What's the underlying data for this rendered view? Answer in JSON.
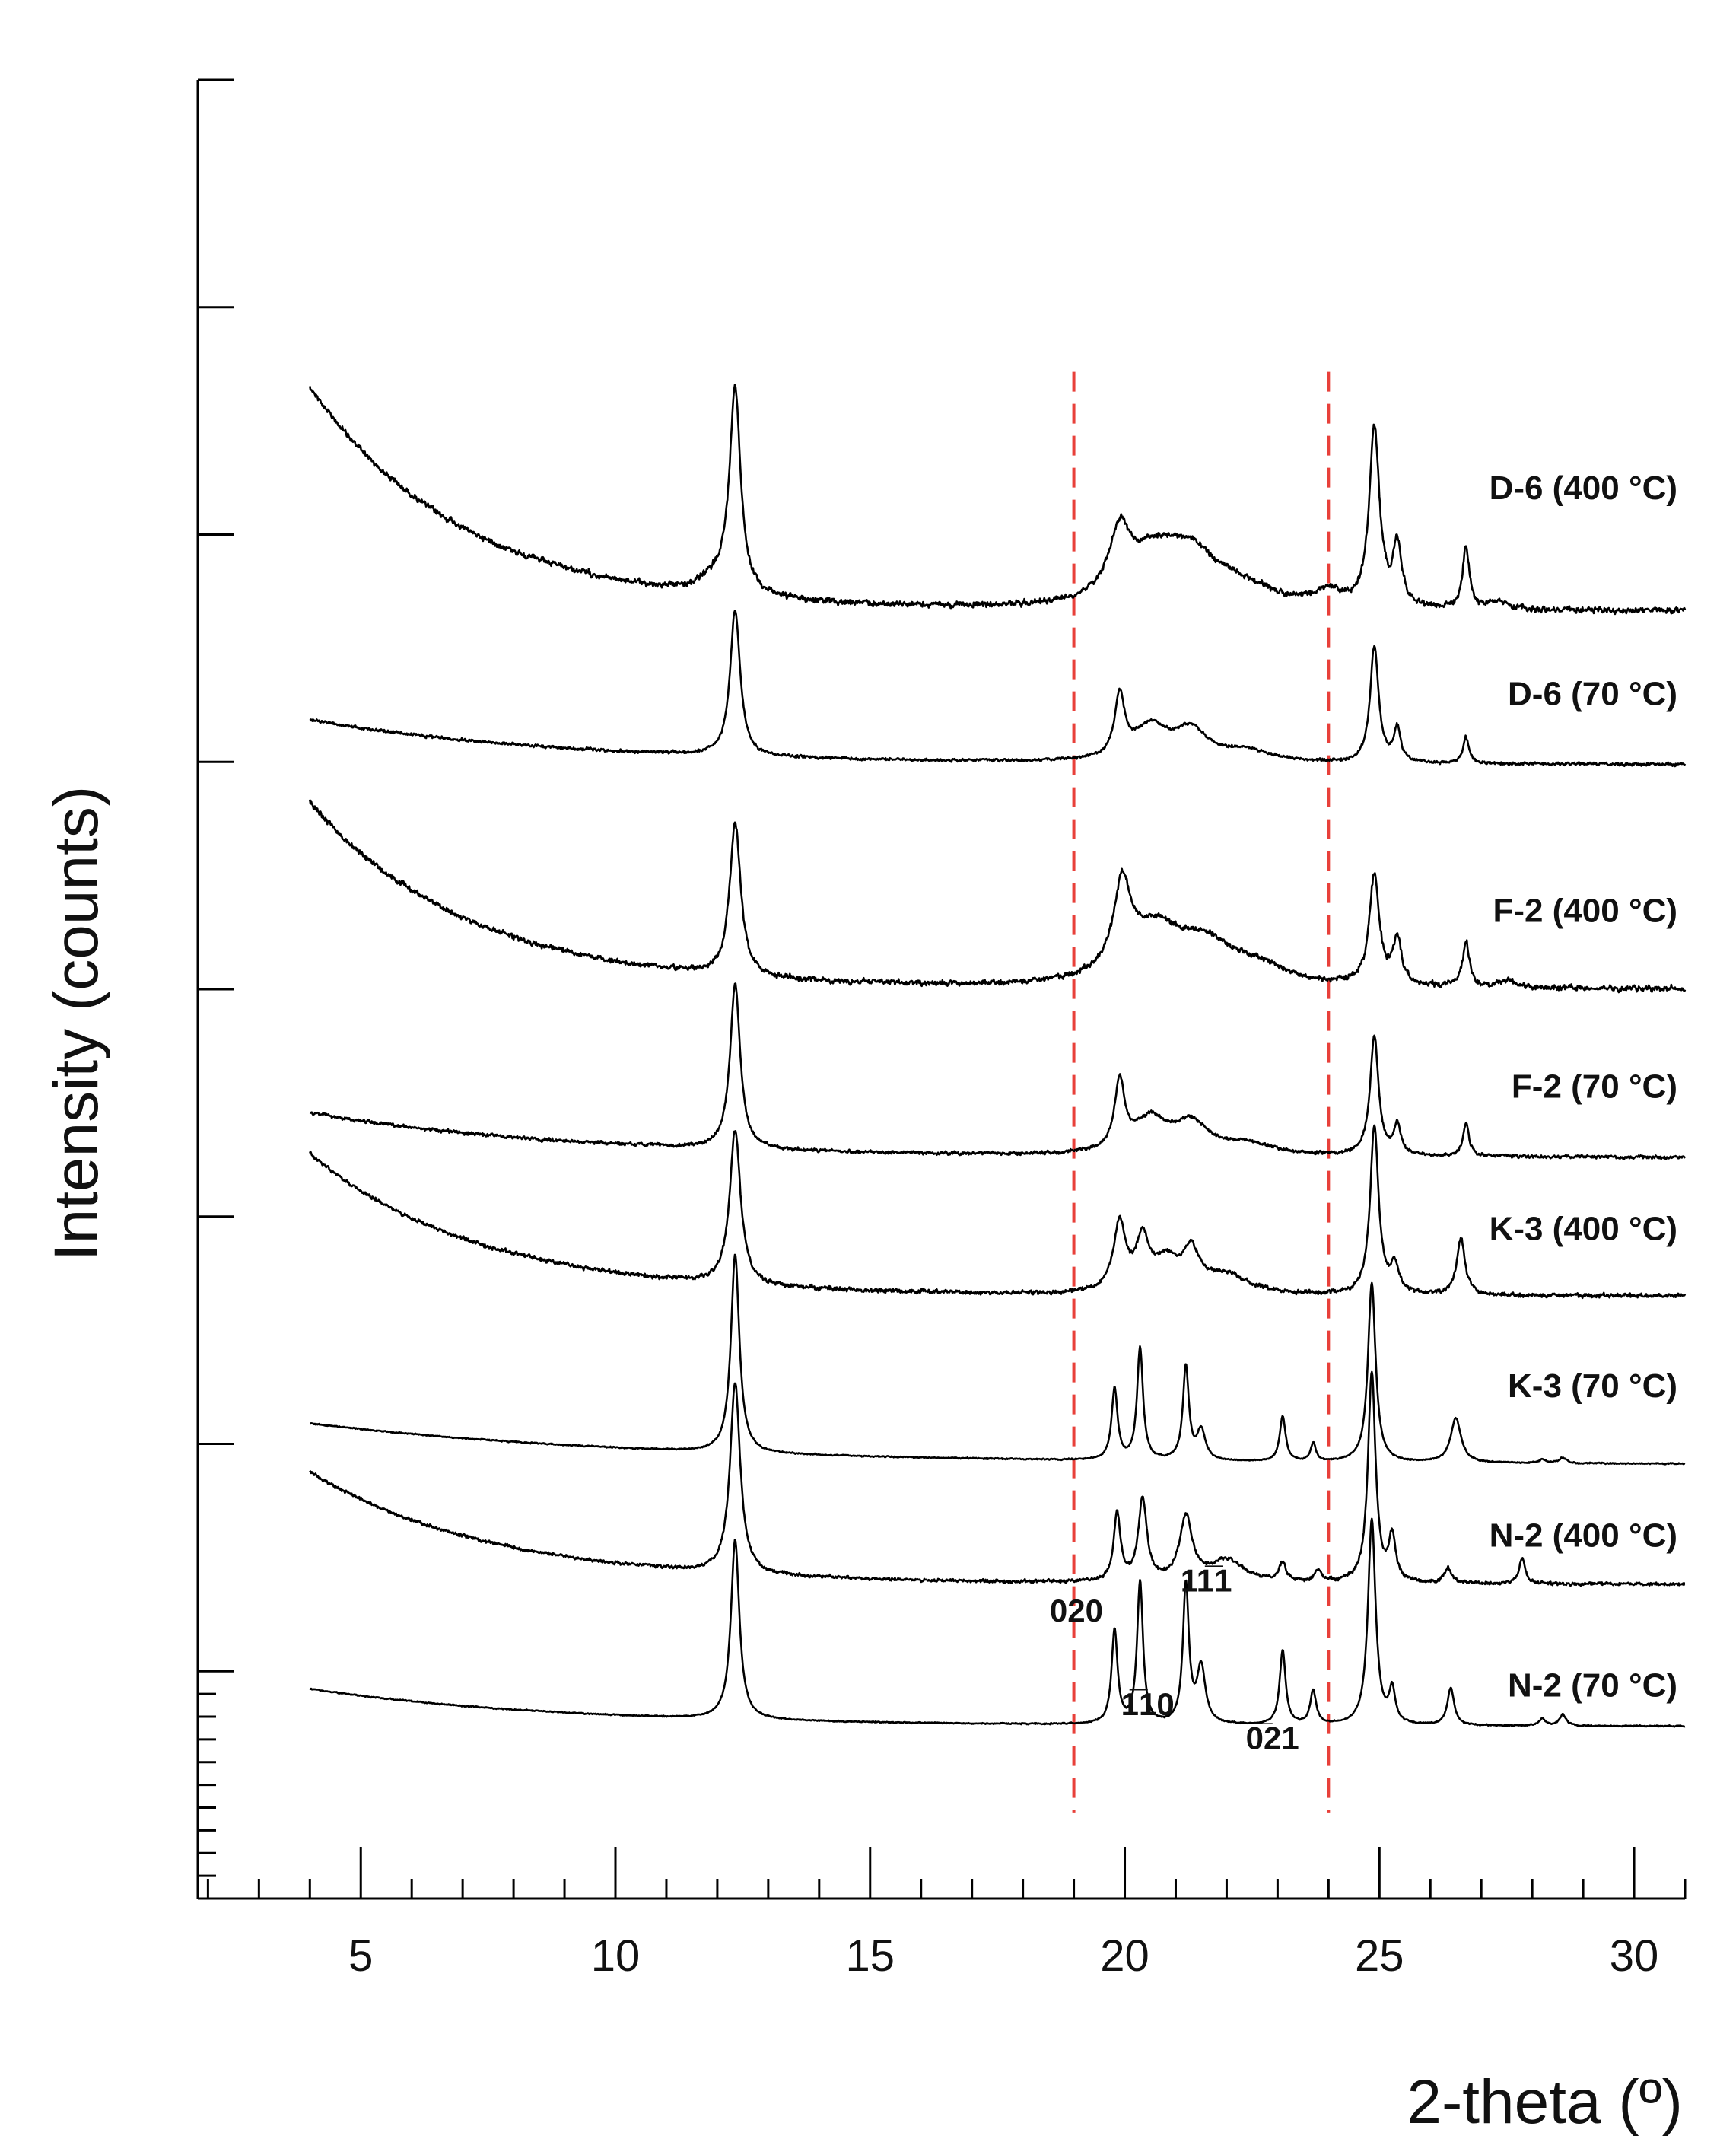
{
  "chart_data": {
    "type": "line",
    "title": "",
    "xlabel": "2-theta (º)",
    "ylabel": "Intensity (counts)",
    "xlim": [
      1.8,
      31
    ],
    "x_ticks": [
      "5",
      "10",
      "15",
      "20",
      "25",
      "30"
    ],
    "x_tick_values": [
      5,
      10,
      15,
      20,
      25,
      30
    ],
    "y_tick_count": 9,
    "reference_lines_x": [
      19,
      24
    ],
    "reference_color": "#e8403a",
    "trace_color": "#000000",
    "x_range": [
      4,
      31
    ],
    "series": [
      {
        "name": "D-6 (400 °C)",
        "label": "D-6  (400 °C)",
        "baseline": 14.2,
        "start": 6.0,
        "decay": 0.33,
        "noise": 0.14,
        "steps": 7,
        "peaks": [
          [
            12.35,
            5.4,
            0.13
          ],
          [
            12.0,
            0.4,
            0.4
          ],
          [
            19.9,
            1.6,
            0.25
          ],
          [
            20.6,
            1.3,
            0.7
          ],
          [
            21.3,
            1.0,
            0.6
          ],
          [
            22.2,
            0.5,
            0.8
          ],
          [
            24.0,
            0.4,
            0.3
          ],
          [
            24.9,
            4.8,
            0.12
          ],
          [
            25.35,
            1.6,
            0.1
          ],
          [
            26.7,
            1.6,
            0.08
          ],
          [
            27.3,
            0.2,
            0.2
          ]
        ]
      },
      {
        "name": "D-6 (70 °C)",
        "label": "D-6  (70 °C)",
        "baseline": 18.3,
        "start": 1.2,
        "decay": 0.2,
        "noise": 0.07,
        "steps": 1,
        "peaks": [
          [
            12.35,
            3.9,
            0.12
          ],
          [
            19.9,
            1.6,
            0.12
          ],
          [
            20.5,
            0.9,
            0.4
          ],
          [
            21.3,
            0.8,
            0.4
          ],
          [
            22.4,
            0.3,
            0.6
          ],
          [
            24.9,
            3.1,
            0.1
          ],
          [
            25.35,
            0.9,
            0.08
          ],
          [
            26.7,
            0.7,
            0.07
          ]
        ]
      },
      {
        "name": "F-2 (400 °C)",
        "label": "F-2  (400 °C)",
        "baseline": 24.3,
        "start": 5.0,
        "decay": 0.32,
        "noise": 0.13,
        "steps": 7,
        "peaks": [
          [
            12.35,
            4.1,
            0.13
          ],
          [
            19.95,
            2.2,
            0.2
          ],
          [
            20.6,
            1.4,
            0.7
          ],
          [
            21.6,
            0.9,
            0.7
          ],
          [
            22.6,
            0.4,
            0.7
          ],
          [
            24.9,
            2.9,
            0.12
          ],
          [
            25.35,
            1.2,
            0.1
          ],
          [
            26.7,
            1.2,
            0.08
          ],
          [
            27.5,
            0.2,
            0.2
          ]
        ]
      },
      {
        "name": "F-2 (70 °C)",
        "label": "F-2  (70 °C)",
        "baseline": 28.8,
        "start": 1.2,
        "decay": 0.2,
        "noise": 0.08,
        "steps": 1,
        "peaks": [
          [
            12.35,
            4.4,
            0.12
          ],
          [
            19.9,
            1.8,
            0.12
          ],
          [
            20.5,
            0.9,
            0.4
          ],
          [
            21.3,
            0.8,
            0.4
          ],
          [
            22.4,
            0.3,
            0.6
          ],
          [
            24.9,
            3.2,
            0.1
          ],
          [
            25.35,
            0.8,
            0.08
          ],
          [
            26.7,
            0.9,
            0.07
          ]
        ]
      },
      {
        "name": "K-3 (400 °C)",
        "label": "K-3  (400 °C)",
        "baseline": 32.5,
        "start": 3.8,
        "decay": 0.3,
        "noise": 0.1,
        "steps": 6,
        "peaks": [
          [
            12.35,
            4.1,
            0.13
          ],
          [
            19.9,
            1.8,
            0.15
          ],
          [
            20.35,
            1.3,
            0.15
          ],
          [
            20.8,
            0.8,
            0.3
          ],
          [
            21.3,
            1.0,
            0.2
          ],
          [
            22.0,
            0.5,
            0.5
          ],
          [
            24.9,
            4.5,
            0.1
          ],
          [
            25.3,
            0.7,
            0.1
          ],
          [
            26.6,
            1.5,
            0.1
          ]
        ]
      },
      {
        "name": "K-3 (70 °C)",
        "label": "K-3  (70 °C)",
        "baseline": 37.0,
        "start": 1.1,
        "decay": 0.15,
        "noise": 0.03,
        "steps": 1,
        "peaks": [
          [
            12.35,
            5.3,
            0.1
          ],
          [
            19.8,
            1.9,
            0.07
          ],
          [
            20.3,
            3.0,
            0.07
          ],
          [
            21.2,
            2.5,
            0.07
          ],
          [
            21.5,
            0.8,
            0.1
          ],
          [
            23.1,
            1.2,
            0.07
          ],
          [
            23.7,
            0.5,
            0.06
          ],
          [
            24.85,
            4.8,
            0.09
          ],
          [
            26.5,
            1.2,
            0.12
          ],
          [
            28.2,
            0.1,
            0.08
          ],
          [
            28.6,
            0.15,
            0.08
          ]
        ]
      },
      {
        "name": "N-2 (400 °C)",
        "label": "N-2 (400 °C)",
        "baseline": 40.2,
        "start": 3.0,
        "decay": 0.28,
        "noise": 0.08,
        "steps": 4,
        "peaks": [
          [
            12.35,
            5.1,
            0.12
          ],
          [
            19.85,
            1.8,
            0.08
          ],
          [
            20.35,
            2.2,
            0.1
          ],
          [
            21.2,
            1.7,
            0.15
          ],
          [
            22.0,
            0.6,
            0.4
          ],
          [
            23.1,
            0.5,
            0.08
          ],
          [
            23.8,
            0.3,
            0.08
          ],
          [
            24.85,
            5.6,
            0.09
          ],
          [
            25.25,
            1.2,
            0.08
          ],
          [
            26.35,
            0.4,
            0.08
          ],
          [
            27.8,
            0.7,
            0.07
          ]
        ]
      },
      {
        "name": "N-2 (70 °C)",
        "label": "N-2 (70 °C)",
        "baseline": 44.0,
        "start": 1.0,
        "decay": 0.2,
        "noise": 0.03,
        "steps": 1,
        "peaks": [
          [
            12.35,
            4.8,
            0.1
          ],
          [
            19.8,
            2.5,
            0.07
          ],
          [
            20.3,
            3.8,
            0.07
          ],
          [
            21.2,
            3.7,
            0.07
          ],
          [
            21.5,
            1.5,
            0.1
          ],
          [
            23.1,
            2.0,
            0.07
          ],
          [
            23.7,
            0.9,
            0.07
          ],
          [
            24.85,
            5.5,
            0.09
          ],
          [
            25.25,
            0.9,
            0.07
          ],
          [
            26.4,
            1.0,
            0.08
          ],
          [
            28.2,
            0.2,
            0.07
          ],
          [
            28.6,
            0.3,
            0.08
          ]
        ]
      }
    ],
    "peak_annotations": [
      {
        "label": "020",
        "x": 19.05,
        "y": 41.2
      },
      {
        "label": "11̅1",
        "x": 21.6,
        "y": 40.4
      },
      {
        "label": "1̅10",
        "x": 20.45,
        "y": 43.7
      },
      {
        "label": "0̅21",
        "x": 22.9,
        "y": 44.6
      }
    ],
    "series_label_y": [
      11.2,
      16.7,
      22.5,
      27.2,
      31.0,
      35.2,
      39.2,
      43.2
    ],
    "y_domain": [
      0,
      48.6
    ]
  }
}
